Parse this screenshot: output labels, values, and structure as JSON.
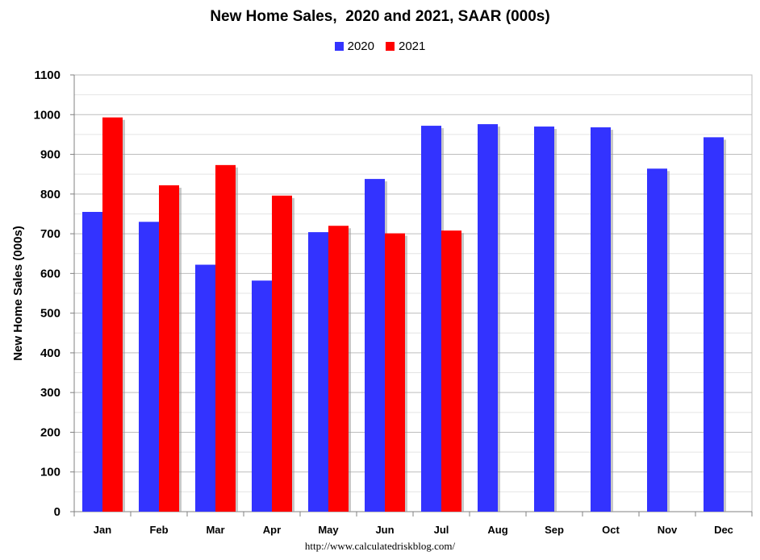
{
  "chart_data": {
    "type": "bar",
    "title": "New Home Sales,  2020 and 2021, SAAR (000s)",
    "xlabel": "",
    "ylabel": "New Home Sales (000s)",
    "ylim": [
      0,
      1100
    ],
    "yticks": [
      0,
      100,
      200,
      300,
      400,
      500,
      600,
      700,
      800,
      900,
      1000,
      1100
    ],
    "grid": true,
    "legend_position": "top-center",
    "categories": [
      "Jan",
      "Feb",
      "Mar",
      "Apr",
      "May",
      "Jun",
      "Jul",
      "Aug",
      "Sep",
      "Oct",
      "Nov",
      "Dec"
    ],
    "series": [
      {
        "name": "2020",
        "color": "#3333ff",
        "values": [
          755,
          730,
          622,
          582,
          704,
          838,
          972,
          976,
          970,
          968,
          864,
          943
        ]
      },
      {
        "name": "2021",
        "color": "#ff0000",
        "values": [
          993,
          822,
          873,
          796,
          720,
          701,
          708,
          null,
          null,
          null,
          null,
          null
        ]
      }
    ]
  },
  "source": "http://www.calculatedriskblog.com/"
}
